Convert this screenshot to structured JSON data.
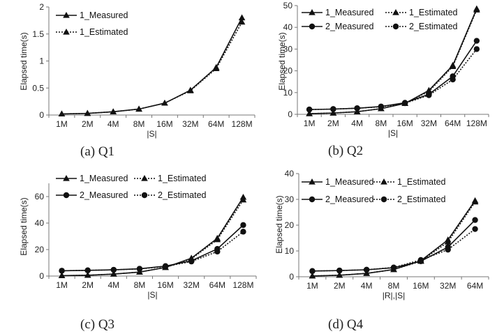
{
  "chart_data": [
    {
      "type": "line",
      "caption": "(a) Q1",
      "categories": [
        "1M",
        "2M",
        "4M",
        "8M",
        "16M",
        "32M",
        "64M",
        "128M"
      ],
      "xlabel": "|S|",
      "ylabel": "Elapsed time(s)",
      "ylim": [
        0,
        2
      ],
      "yticks": [
        "0",
        "0.5",
        "1",
        "1.5",
        "2"
      ],
      "series": [
        {
          "name": "1_Measured",
          "marker": "triangle",
          "dash": "solid",
          "values": [
            0.02,
            0.03,
            0.06,
            0.11,
            0.22,
            0.46,
            0.88,
            1.8
          ]
        },
        {
          "name": "1_Estimated",
          "marker": "triangle",
          "dash": "dotted",
          "values": [
            0.02,
            0.03,
            0.06,
            0.11,
            0.22,
            0.45,
            0.86,
            1.72
          ]
        }
      ]
    },
    {
      "type": "line",
      "caption": "(b) Q2",
      "categories": [
        "1M",
        "2M",
        "4M",
        "8M",
        "16M",
        "32M",
        "64M",
        "128M"
      ],
      "xlabel": "|S|",
      "ylabel": "Elapsed time(s)",
      "ylim": [
        0,
        50
      ],
      "yticks": [
        "0",
        "10",
        "20",
        "30",
        "40",
        "50"
      ],
      "series": [
        {
          "name": "1_Measured",
          "marker": "triangle",
          "dash": "solid",
          "values": [
            0.3,
            0.6,
            1.2,
            2.6,
            5.0,
            11.0,
            22.5,
            48.5
          ]
        },
        {
          "name": "1_Estimated",
          "marker": "triangle",
          "dash": "dotted",
          "values": [
            0.3,
            0.6,
            1.2,
            2.6,
            5.1,
            10.5,
            22.0,
            48.0
          ]
        },
        {
          "name": "2_Measured",
          "marker": "circle",
          "dash": "solid",
          "values": [
            2.2,
            2.4,
            2.8,
            3.6,
            5.3,
            9.2,
            17.5,
            33.8
          ]
        },
        {
          "name": "2_Estimated",
          "marker": "circle",
          "dash": "dotted",
          "values": [
            2.2,
            2.4,
            2.8,
            3.5,
            5.1,
            8.8,
            16.0,
            30.0
          ]
        }
      ]
    },
    {
      "type": "line",
      "caption": "(c) Q3",
      "categories": [
        "1M",
        "2M",
        "4M",
        "8M",
        "16M",
        "32M",
        "64M",
        "128M"
      ],
      "xlabel": "|S|",
      "ylabel": "Elapsed time(s)",
      "ylim": [
        0,
        70
      ],
      "yticks": [
        "0",
        "20",
        "40",
        "60"
      ],
      "series": [
        {
          "name": "1_Measured",
          "marker": "triangle",
          "dash": "solid",
          "values": [
            0.3,
            0.6,
            1.5,
            3.0,
            6.5,
            13.5,
            28.5,
            59.5
          ]
        },
        {
          "name": "1_Estimated",
          "marker": "triangle",
          "dash": "dotted",
          "values": [
            0.3,
            0.6,
            1.5,
            3.0,
            6.5,
            13.0,
            27.5,
            57.5
          ]
        },
        {
          "name": "2_Measured",
          "marker": "circle",
          "dash": "solid",
          "values": [
            4.0,
            4.3,
            4.7,
            5.5,
            7.5,
            11.5,
            20.5,
            38.5
          ]
        },
        {
          "name": "2_Estimated",
          "marker": "circle",
          "dash": "dotted",
          "values": [
            4.0,
            4.3,
            4.7,
            5.4,
            7.2,
            11.0,
            18.5,
            33.5
          ]
        }
      ]
    },
    {
      "type": "line",
      "caption": "(d) Q4",
      "categories": [
        "1M",
        "2M",
        "4M",
        "8M",
        "16M",
        "32M",
        "64M"
      ],
      "xlabel": "|R|,|S|",
      "ylabel": "Elapsed time(s)",
      "ylim": [
        0,
        40
      ],
      "yticks": [
        "0",
        "10",
        "20",
        "30",
        "40"
      ],
      "series": [
        {
          "name": "1_Measured",
          "marker": "triangle",
          "dash": "solid",
          "values": [
            0.3,
            0.6,
            1.3,
            2.8,
            6.2,
            14.3,
            29.5
          ]
        },
        {
          "name": "1_Estimated",
          "marker": "triangle",
          "dash": "dotted",
          "values": [
            0.3,
            0.6,
            1.3,
            2.8,
            6.0,
            13.5,
            29.0
          ]
        },
        {
          "name": "2_Measured",
          "marker": "circle",
          "dash": "solid",
          "values": [
            2.2,
            2.4,
            2.7,
            3.5,
            6.0,
            11.5,
            22.0
          ]
        },
        {
          "name": "2_Estimated",
          "marker": "circle",
          "dash": "dotted",
          "values": [
            2.2,
            2.4,
            2.7,
            3.6,
            6.5,
            10.5,
            18.5
          ]
        }
      ]
    }
  ]
}
